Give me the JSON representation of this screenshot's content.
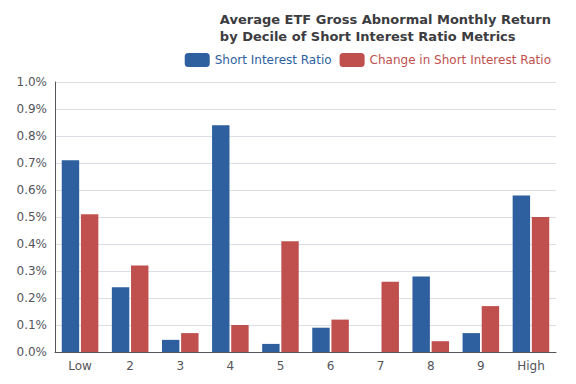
{
  "chart_data": {
    "type": "bar",
    "title": "Average ETF Gross Abnormal Monthly Return\nby Decile of Short Interest Ratio Metrics",
    "categories": [
      "Low",
      "2",
      "3",
      "4",
      "5",
      "6",
      "7",
      "8",
      "9",
      "High"
    ],
    "series": [
      {
        "name": "Short Interest Ratio",
        "color": "#2E5F9E",
        "values": [
          0.0071,
          0.0024,
          0.00045,
          0.0084,
          0.0003,
          0.0009,
          0.0,
          0.0028,
          0.0007,
          0.0058
        ]
      },
      {
        "name": "Change in Short Interest Ratio",
        "color": "#C0504D",
        "values": [
          0.0051,
          0.0032,
          0.0007,
          0.001,
          0.0041,
          0.0012,
          0.0026,
          0.0004,
          0.0017,
          0.005
        ]
      }
    ],
    "ylim": [
      0,
      0.01
    ],
    "yticks": [
      {
        "value": 0,
        "label": "0.0%"
      },
      {
        "value": 0.001,
        "label": "0.1%"
      },
      {
        "value": 0.002,
        "label": "0.2%"
      },
      {
        "value": 0.003,
        "label": "0.3%"
      },
      {
        "value": 0.004,
        "label": "0.4%"
      },
      {
        "value": 0.005,
        "label": "0.5%"
      },
      {
        "value": 0.006,
        "label": "0.6%"
      },
      {
        "value": 0.007,
        "label": "0.7%"
      },
      {
        "value": 0.008,
        "label": "0.8%"
      },
      {
        "value": 0.009,
        "label": "0.9%"
      },
      {
        "value": 0.01,
        "label": "1.0%"
      }
    ],
    "grid": true,
    "legend": "upper right"
  }
}
